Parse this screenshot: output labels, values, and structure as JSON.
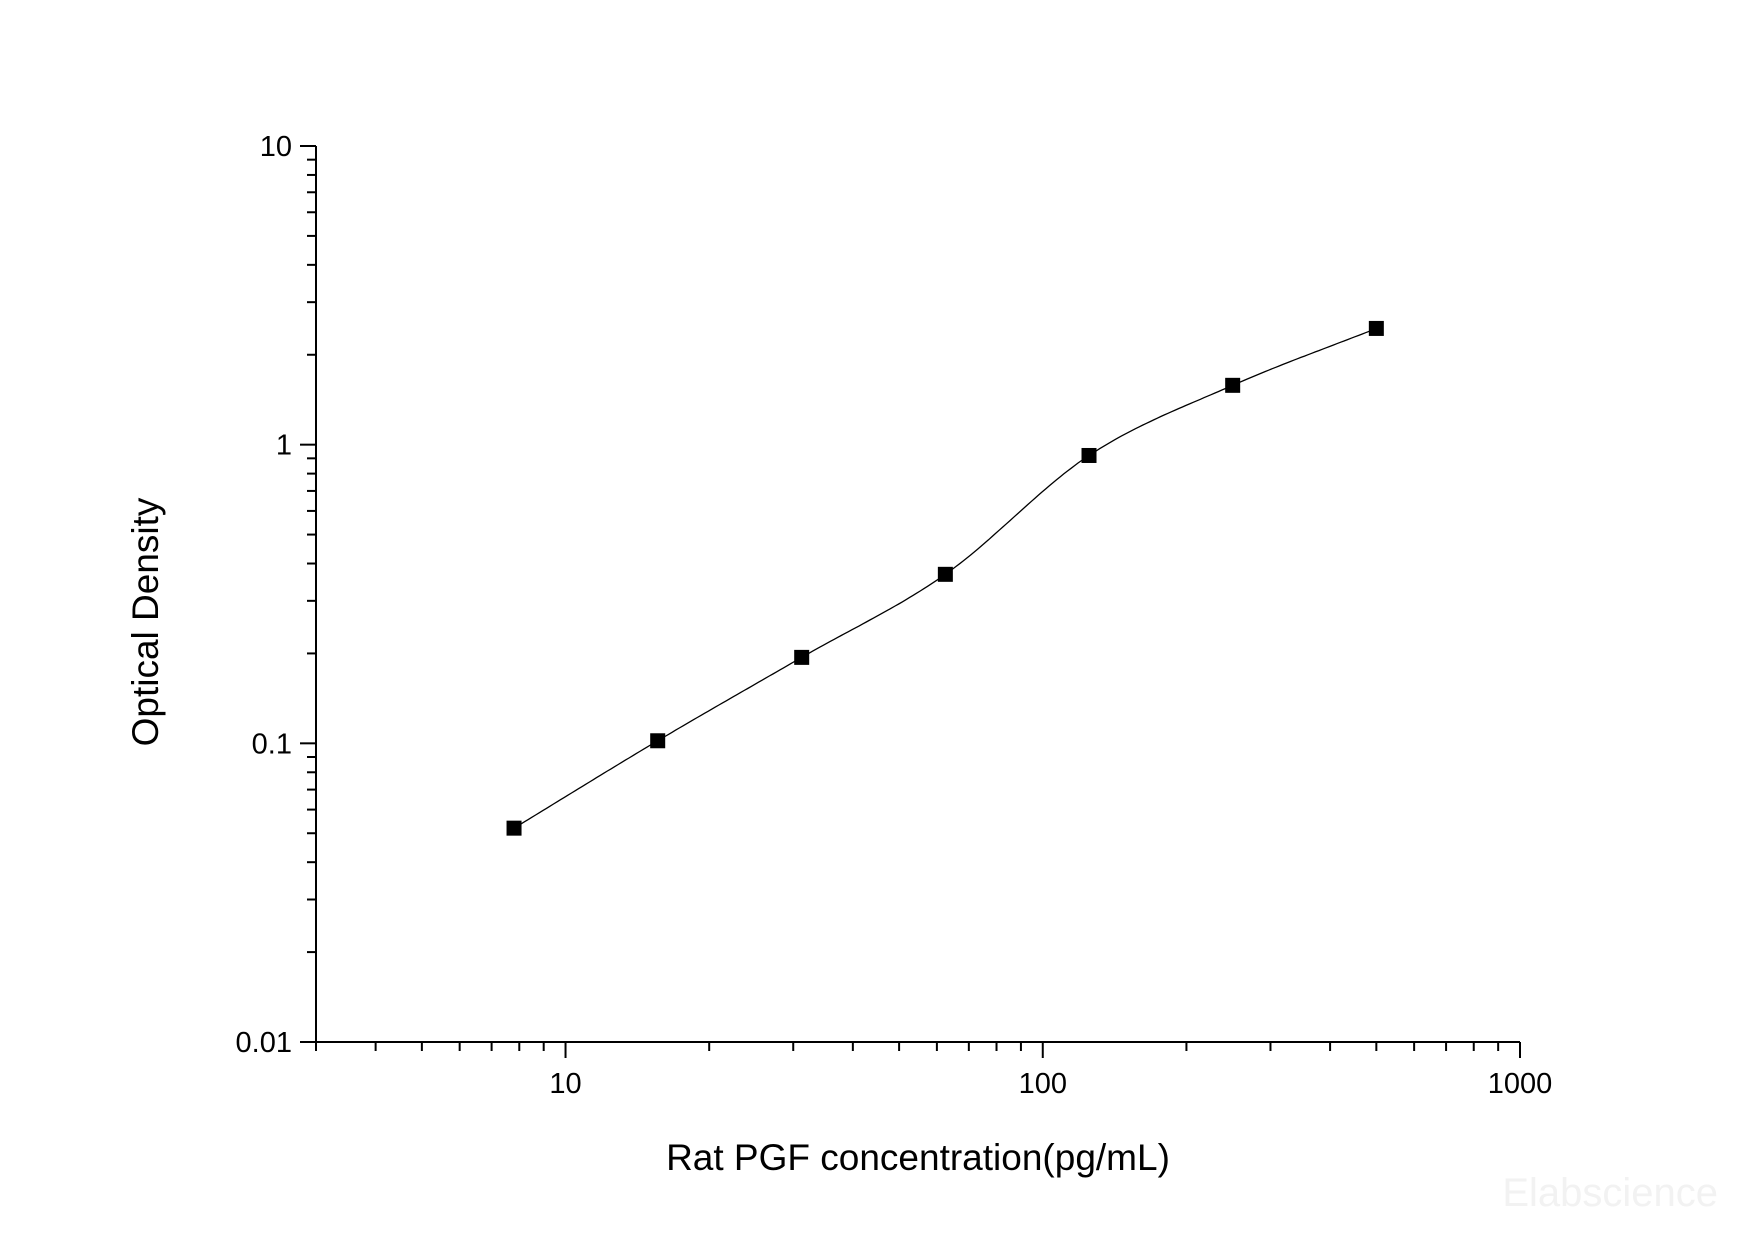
{
  "chart_data": {
    "type": "scatter",
    "xlabel": "Rat PGF concentration(pg/mL)",
    "ylabel": "Optical Density",
    "x_scale": "log",
    "y_scale": "log",
    "xlim": [
      3,
      1000
    ],
    "ylim": [
      0.01,
      10
    ],
    "x_ticks": [
      {
        "value": 10,
        "label": "10"
      },
      {
        "value": 100,
        "label": "100"
      },
      {
        "value": 1000,
        "label": "1000"
      }
    ],
    "y_ticks": [
      {
        "value": 0.01,
        "label": "0.01"
      },
      {
        "value": 0.1,
        "label": "0.1"
      },
      {
        "value": 1,
        "label": "1"
      },
      {
        "value": 10,
        "label": "10"
      }
    ],
    "grid": false,
    "series": [
      {
        "x": [
          7.8,
          15.6,
          31.25,
          62.5,
          125,
          250,
          500
        ],
        "y": [
          0.052,
          0.102,
          0.194,
          0.368,
          0.92,
          1.58,
          2.45
        ]
      }
    ],
    "fit_curve": {
      "type": "four-parameter logistic",
      "x_range": [
        7.8,
        500
      ]
    },
    "watermark": "Elabscience"
  }
}
